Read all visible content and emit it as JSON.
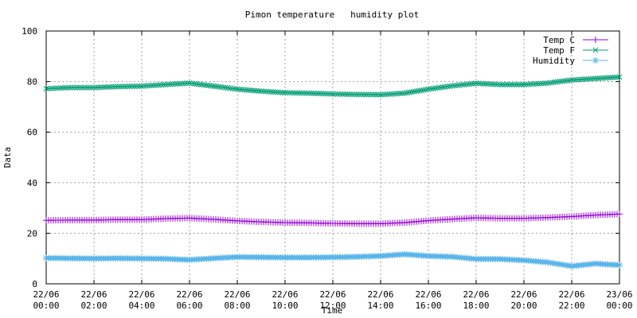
{
  "chart_data": {
    "type": "line",
    "title": "Pimon temperature   humidity plot",
    "xlabel": "Time",
    "ylabel": "Data",
    "ylim": [
      0,
      100
    ],
    "yticks": [
      0,
      20,
      40,
      60,
      80,
      100
    ],
    "xlim": [
      0,
      24
    ],
    "xtick_values": [
      0,
      2,
      4,
      6,
      8,
      10,
      12,
      14,
      16,
      18,
      20,
      22,
      24
    ],
    "xtick_labels": [
      [
        "22/06",
        "00:00"
      ],
      [
        "22/06",
        "02:00"
      ],
      [
        "22/06",
        "04:00"
      ],
      [
        "22/06",
        "06:00"
      ],
      [
        "22/06",
        "08:00"
      ],
      [
        "22/06",
        "10:00"
      ],
      [
        "22/06",
        "12:00"
      ],
      [
        "22/06",
        "14:00"
      ],
      [
        "22/06",
        "16:00"
      ],
      [
        "22/06",
        "18:00"
      ],
      [
        "22/06",
        "20:00"
      ],
      [
        "22/06",
        "22:00"
      ],
      [
        "23/06",
        "00:00"
      ]
    ],
    "grid": true,
    "legend_position": "top-right",
    "x_hours": [
      0,
      1,
      2,
      3,
      4,
      5,
      6,
      7,
      8,
      9,
      10,
      11,
      12,
      13,
      14,
      15,
      16,
      17,
      18,
      19,
      20,
      21,
      22,
      23,
      24
    ],
    "series": [
      {
        "name": "Temp C",
        "color": "#9400d3",
        "marker": "plus",
        "values": [
          25.1,
          25.2,
          25.2,
          25.4,
          25.4,
          25.8,
          26.0,
          25.5,
          24.9,
          24.5,
          24.2,
          24.1,
          23.9,
          23.8,
          23.8,
          24.2,
          25.0,
          25.6,
          26.1,
          25.9,
          25.9,
          26.2,
          26.6,
          27.2,
          27.6
        ]
      },
      {
        "name": "Temp F",
        "color": "#009e73",
        "marker": "cross",
        "values": [
          77.2,
          77.6,
          77.6,
          78.0,
          78.2,
          78.8,
          79.4,
          78.2,
          77.0,
          76.2,
          75.6,
          75.4,
          75.1,
          74.9,
          74.8,
          75.4,
          77.0,
          78.3,
          79.3,
          78.8,
          78.8,
          79.4,
          80.6,
          81.2,
          81.8
        ]
      },
      {
        "name": "Humidity",
        "color": "#56b4e9",
        "marker": "star",
        "values": [
          10.2,
          10.1,
          10.0,
          10.1,
          10.0,
          9.9,
          9.5,
          10.1,
          10.6,
          10.5,
          10.4,
          10.4,
          10.5,
          10.7,
          11.0,
          11.7,
          11.0,
          10.7,
          9.8,
          9.8,
          9.3,
          8.5,
          7.0,
          8.0,
          7.4
        ]
      }
    ]
  }
}
